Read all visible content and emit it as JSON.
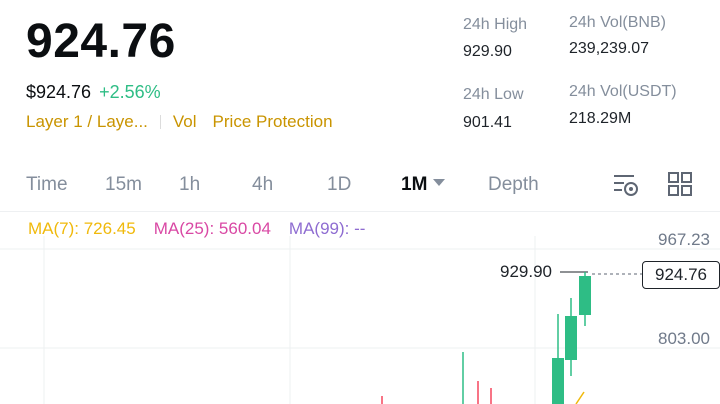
{
  "ticker": {
    "last_price": "924.76",
    "fiat_price": "$924.76",
    "change_pct": "+2.56%",
    "tag_layer": "Layer 1 / Laye...",
    "tag_vol": "Vol",
    "tag_protection": "Price Protection"
  },
  "stats": {
    "high_label": "24h High",
    "high_value": "929.90",
    "low_label": "24h Low",
    "low_value": "901.41",
    "vol_base_label": "24h Vol(BNB)",
    "vol_base_value": "239,239.07",
    "vol_quote_label": "24h Vol(USDT)",
    "vol_quote_value": "218.29M"
  },
  "tabs": {
    "time": "Time",
    "m15": "15m",
    "h1": "1h",
    "h4": "4h",
    "d1": "1D",
    "mo1": "1M",
    "depth": "Depth"
  },
  "icons": {
    "settings": "chart-settings-icon",
    "grid": "grid-layout-icon"
  },
  "ma": {
    "ma7": "MA(7): 726.45",
    "ma25": "MA(25): 560.04",
    "ma99": "MA(99): --"
  },
  "chart": {
    "axis_top": "967.23",
    "axis_mid": "803.00",
    "high_marker": "929.90",
    "current_price": "924.76"
  },
  "colors": {
    "up": "#2ebd85",
    "down": "#f6465d",
    "accent": "#c99400",
    "ma7": "#f0b90b",
    "ma25": "#d948a4",
    "ma99": "#8e6cd1"
  }
}
